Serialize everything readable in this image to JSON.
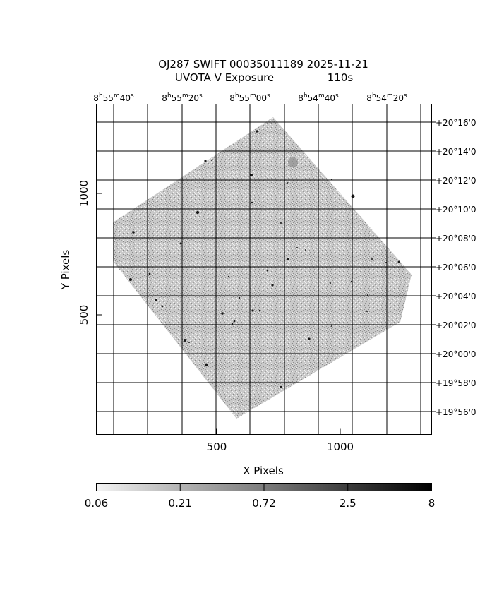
{
  "title": {
    "line1": "OJ287 SWIFT 00035011189 2025-11-21",
    "line2_label": "UVOTA V Exposure",
    "line2_value": "110s"
  },
  "image": {
    "x_axis_label": "X Pixels",
    "y_axis_label": "Y Pixels",
    "x_ticks": [
      {
        "value": 500,
        "label": "500"
      },
      {
        "value": 1000,
        "label": "1000"
      }
    ],
    "y_ticks": [
      {
        "value": 500,
        "label": "500"
      },
      {
        "value": 1000,
        "label": "1000"
      }
    ],
    "ra_labels": [
      {
        "h": "8",
        "m": "55",
        "s": "40"
      },
      {
        "h": "8",
        "m": "55",
        "s": "20"
      },
      {
        "h": "8",
        "m": "55",
        "s": "00"
      },
      {
        "h": "8",
        "m": "54",
        "s": "40"
      },
      {
        "h": "8",
        "m": "54",
        "s": "20"
      }
    ],
    "dec_labels": [
      "+20°16'0",
      "+20°14'0",
      "+20°12'0",
      "+20°10'0",
      "+20°08'0",
      "+20°06'0",
      "+20°04'0",
      "+20°02'0",
      "+20°00'0",
      "+19°58'0",
      "+19°56'0"
    ]
  },
  "colorbar": {
    "tick_labels": [
      "0.06",
      "0.21",
      "0.72",
      "2.5",
      "8"
    ],
    "scale": "log",
    "colormap": "grayscale"
  }
}
